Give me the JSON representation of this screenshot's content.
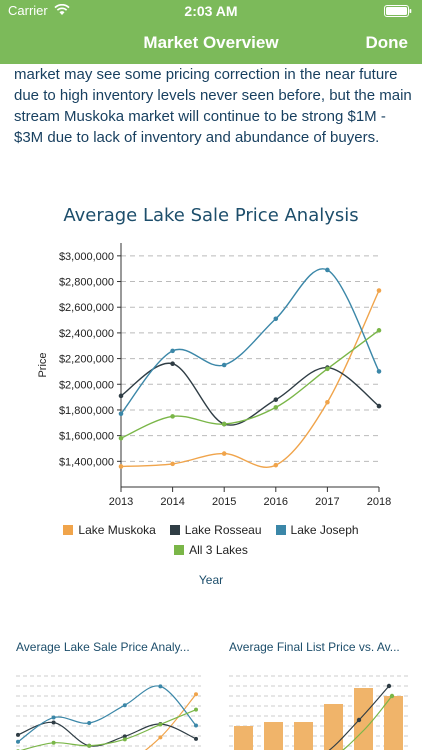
{
  "status_bar": {
    "carrier": "Carrier",
    "time": "2:03 AM"
  },
  "nav": {
    "title": "Market Overview",
    "done_label": "Done"
  },
  "body": {
    "lines": [
      "market may see some pricing correction in the near future",
      "due to high inventory levels never seen before, but the main",
      "stream Muskoka market will continue to be strong $1M -",
      "$3M due to lack of inventory and abundance of buyers."
    ]
  },
  "colors": {
    "accent": "#7cba5a",
    "muskoka": "#f0a44b",
    "rosseau": "#2f3d45",
    "joseph": "#3b87a8",
    "all3": "#7ab648"
  },
  "chart_data": {
    "type": "line",
    "title": "Average Lake Sale Price Analysis",
    "xlabel": "Year",
    "ylabel": "Price",
    "x": [
      2013,
      2014,
      2015,
      2016,
      2017,
      2018
    ],
    "ylim": [
      1200000,
      3100000
    ],
    "yticks": [
      {
        "v": 1400000,
        "label": "$1,400,000"
      },
      {
        "v": 1600000,
        "label": "$1,600,000"
      },
      {
        "v": 1800000,
        "label": "$1,800,000"
      },
      {
        "v": 2000000,
        "label": "$2,000,000"
      },
      {
        "v": 2200000,
        "label": "$2,200,000"
      },
      {
        "v": 2400000,
        "label": "$2,400,000"
      },
      {
        "v": 2600000,
        "label": "$2,600,000"
      },
      {
        "v": 2800000,
        "label": "$2,800,000"
      },
      {
        "v": 3000000,
        "label": "$3,000,000"
      }
    ],
    "xticks": [
      "2013",
      "2014",
      "2015",
      "2016",
      "2017",
      "2018"
    ],
    "grid": "horizontal dashed",
    "legend_position": "bottom",
    "series": [
      {
        "name": "Lake Muskoka",
        "color": "#f0a44b",
        "values": [
          1360000,
          1380000,
          1460000,
          1370000,
          1860000,
          2730000
        ]
      },
      {
        "name": "Lake Rosseau",
        "color": "#2f3d45",
        "values": [
          1910000,
          2160000,
          1690000,
          1880000,
          2130000,
          1830000
        ]
      },
      {
        "name": "Lake Joseph",
        "color": "#3b87a8",
        "values": [
          1770000,
          2260000,
          2150000,
          2510000,
          2890000,
          2100000
        ]
      },
      {
        "name": "All 3 Lakes",
        "color": "#7ab648",
        "values": [
          1580000,
          1750000,
          1690000,
          1820000,
          2120000,
          2420000
        ]
      }
    ]
  },
  "thumbnails": [
    {
      "title": "Average Lake Sale Price Analy..."
    },
    {
      "title": "Average Final List Price vs. Av..."
    }
  ]
}
